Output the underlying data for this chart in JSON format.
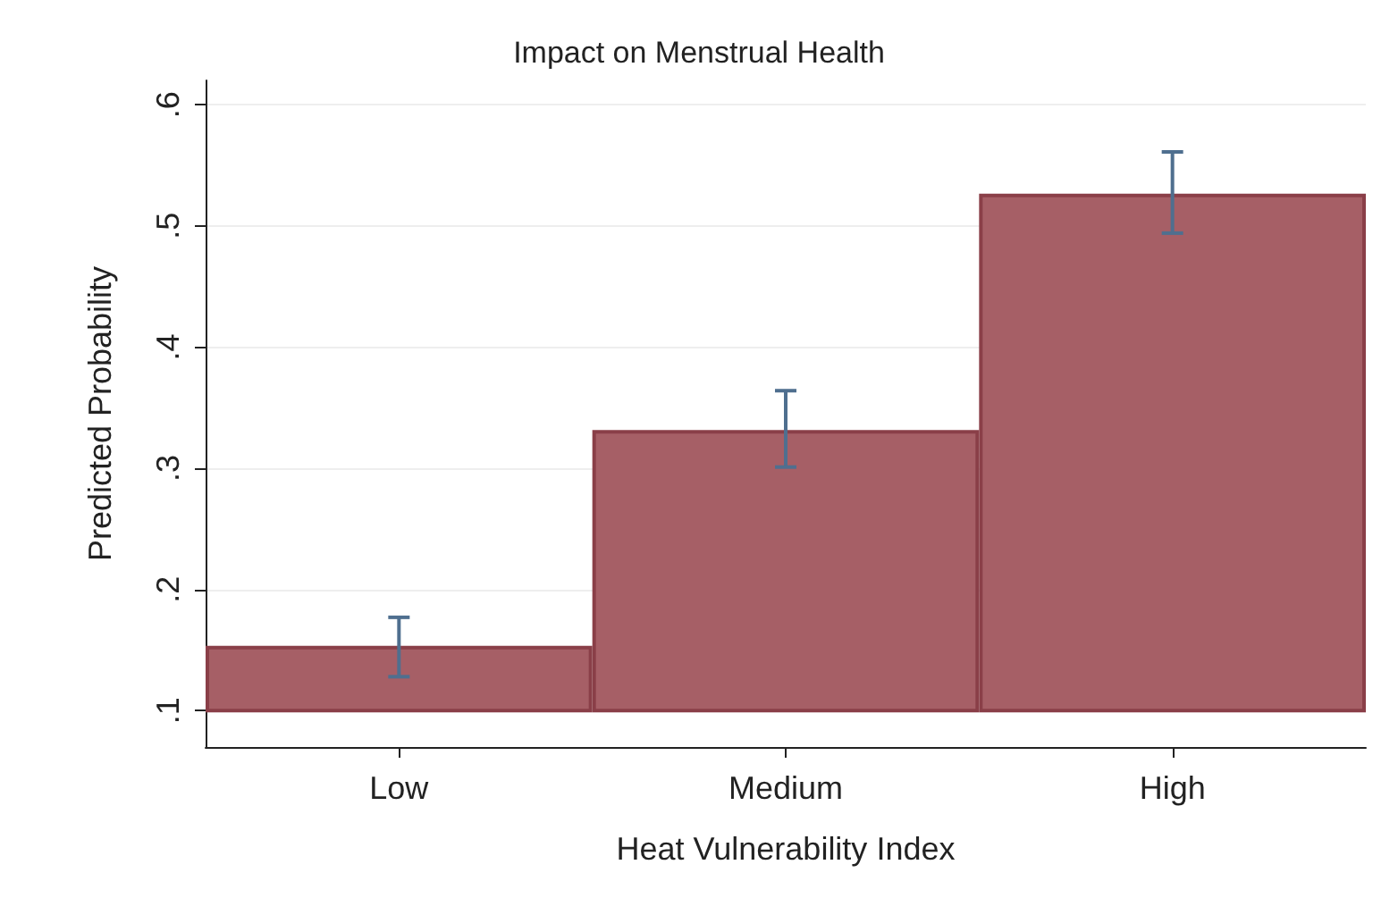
{
  "chart_data": {
    "type": "bar",
    "title": "Impact on Menstrual Health",
    "xlabel": "Heat Vulnerability Index",
    "ylabel": "Predicted Probability",
    "categories": [
      "Low",
      "Medium",
      "High"
    ],
    "base": [
      0.1,
      0.1,
      0.1
    ],
    "values": [
      0.052,
      0.23,
      0.425
    ],
    "errors": [
      [
        0.128,
        0.177
      ],
      [
        0.301,
        0.364
      ],
      [
        0.494,
        0.561
      ]
    ],
    "color": "#a65f66",
    "ylim": [
      0.07,
      0.62
    ],
    "yticks": [
      {
        "value": 0.1,
        "label": ".1"
      },
      {
        "value": 0.2,
        "label": ".2"
      },
      {
        "value": 0.3,
        "label": ".3"
      },
      {
        "value": 0.4,
        "label": ".4"
      },
      {
        "value": 0.5,
        "label": ".5"
      },
      {
        "value": 0.6,
        "label": ".6"
      }
    ],
    "grid": "y"
  }
}
